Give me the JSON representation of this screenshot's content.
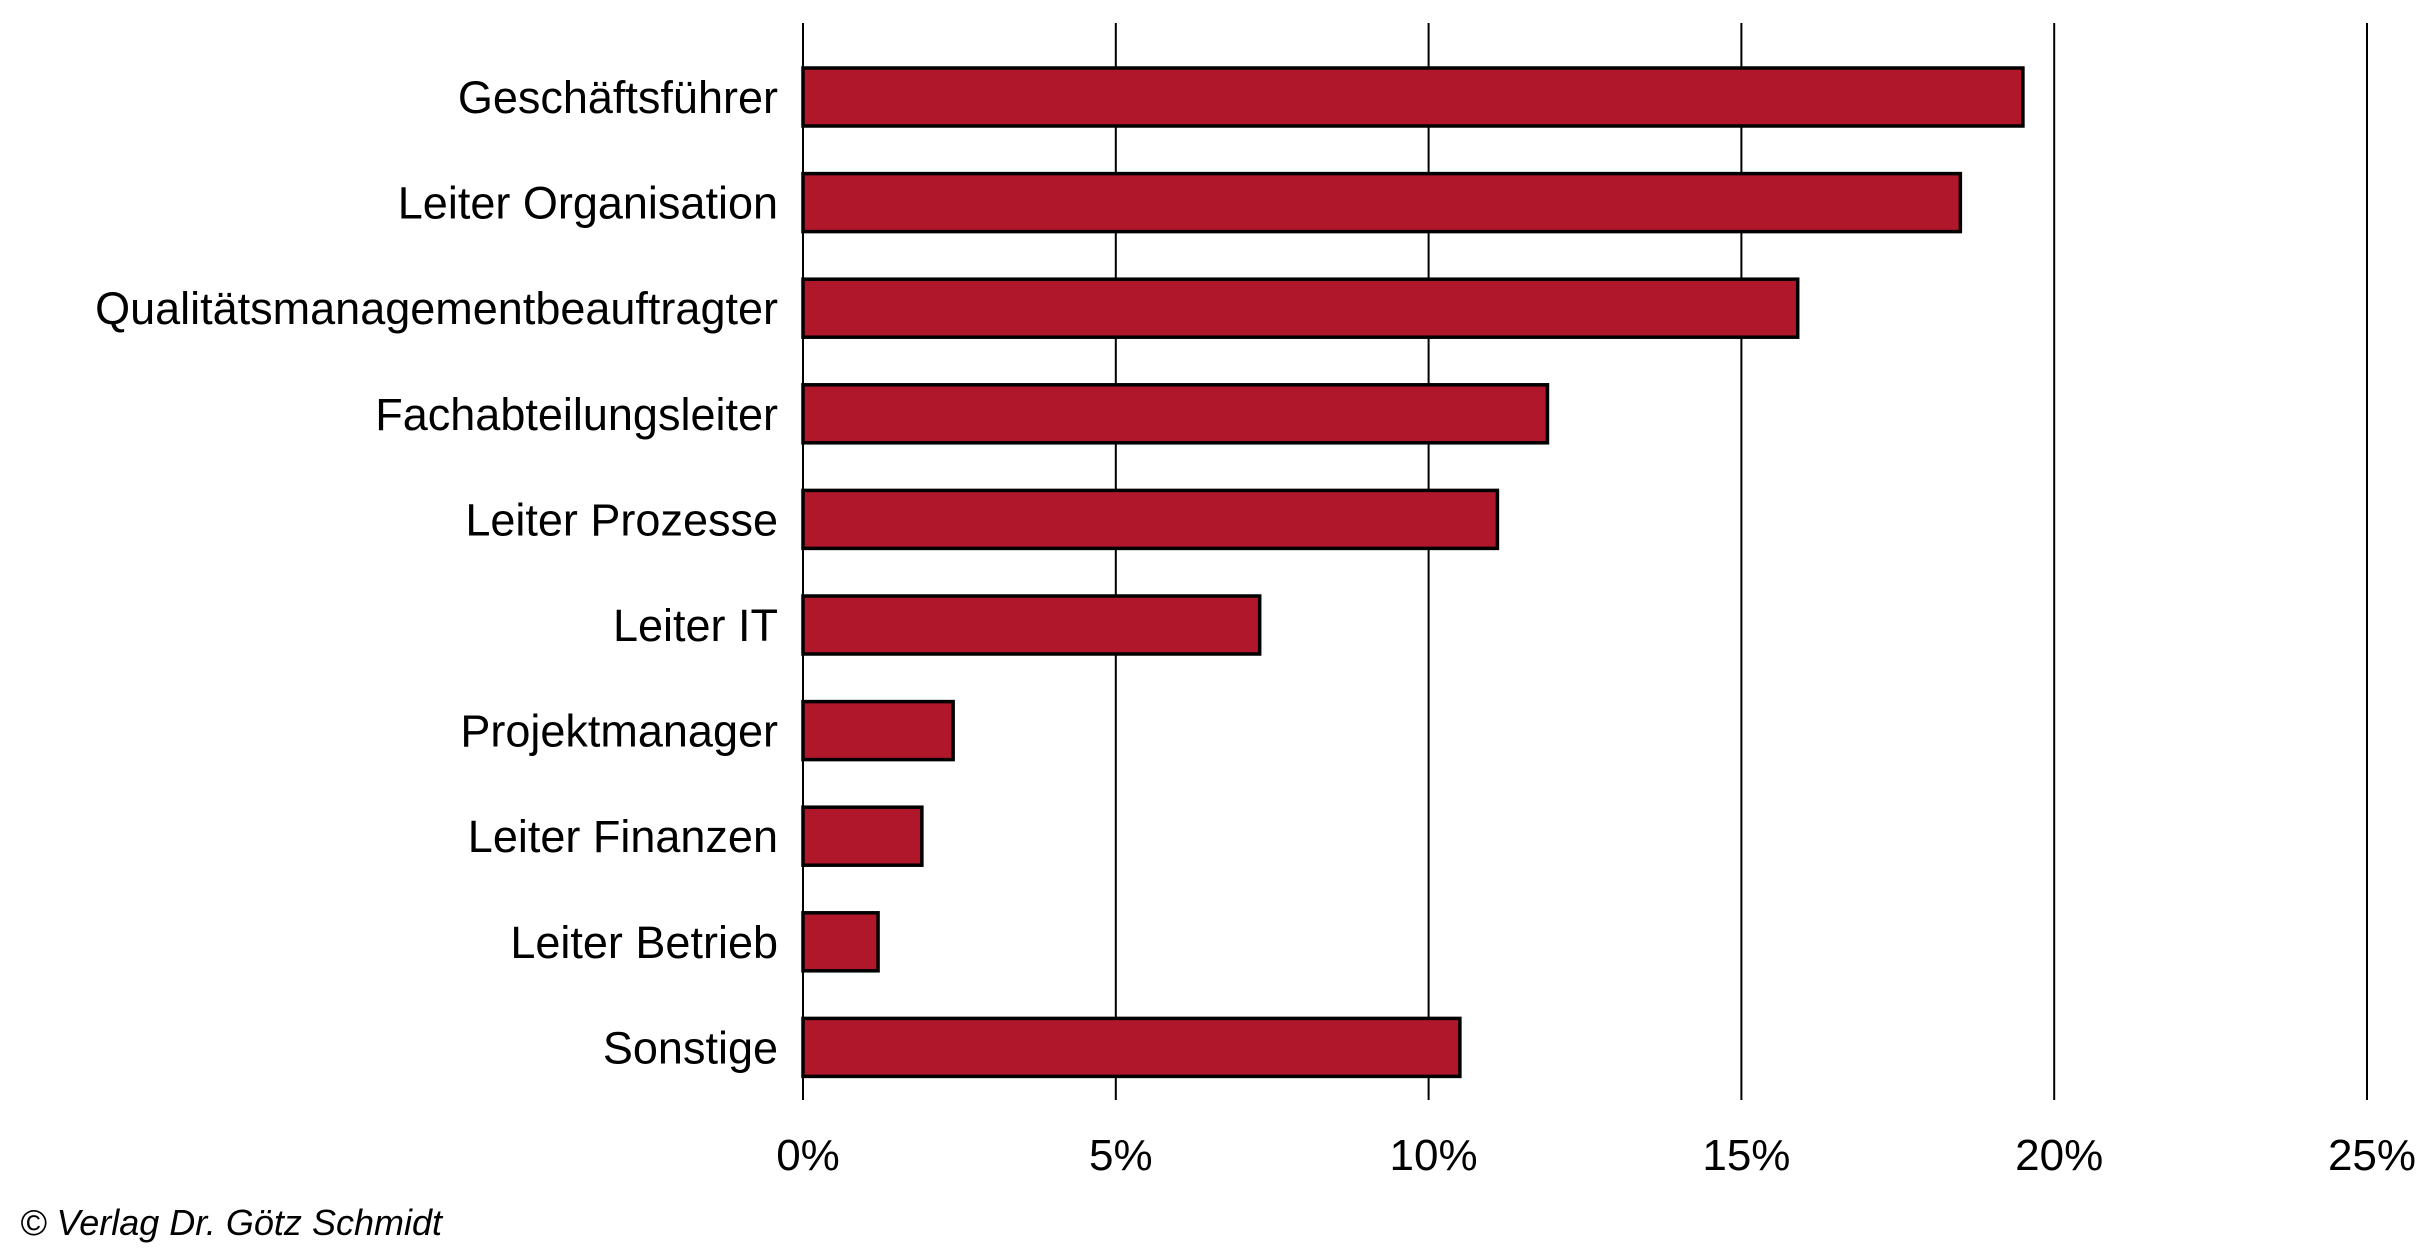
{
  "chart_data": {
    "type": "bar",
    "orientation": "horizontal",
    "title": "",
    "xlabel": "",
    "ylabel": "",
    "categories": [
      "Geschäftsführer",
      "Leiter Organisation",
      "Qualitätsmanagementbeauftragter",
      "Fachabteilungsleiter",
      "Leiter Prozesse",
      "Leiter IT",
      "Projektmanager",
      "Leiter Finanzen",
      "Leiter Betrieb",
      "Sonstige"
    ],
    "values": [
      19.5,
      18.5,
      15.9,
      11.9,
      11.1,
      7.3,
      2.4,
      1.9,
      1.2,
      10.5
    ],
    "unit": "%",
    "xlim": [
      0,
      25
    ],
    "ticks": [
      0,
      5,
      10,
      15,
      20,
      25
    ],
    "tick_labels": [
      "0%",
      "5%",
      "10%",
      "15%",
      "20%",
      "25%"
    ],
    "grid": true,
    "bar_color": "#b0172b",
    "bar_edge_color": "#000000"
  },
  "footer": {
    "copyright": "© Verlag Dr. Götz Schmidt"
  }
}
